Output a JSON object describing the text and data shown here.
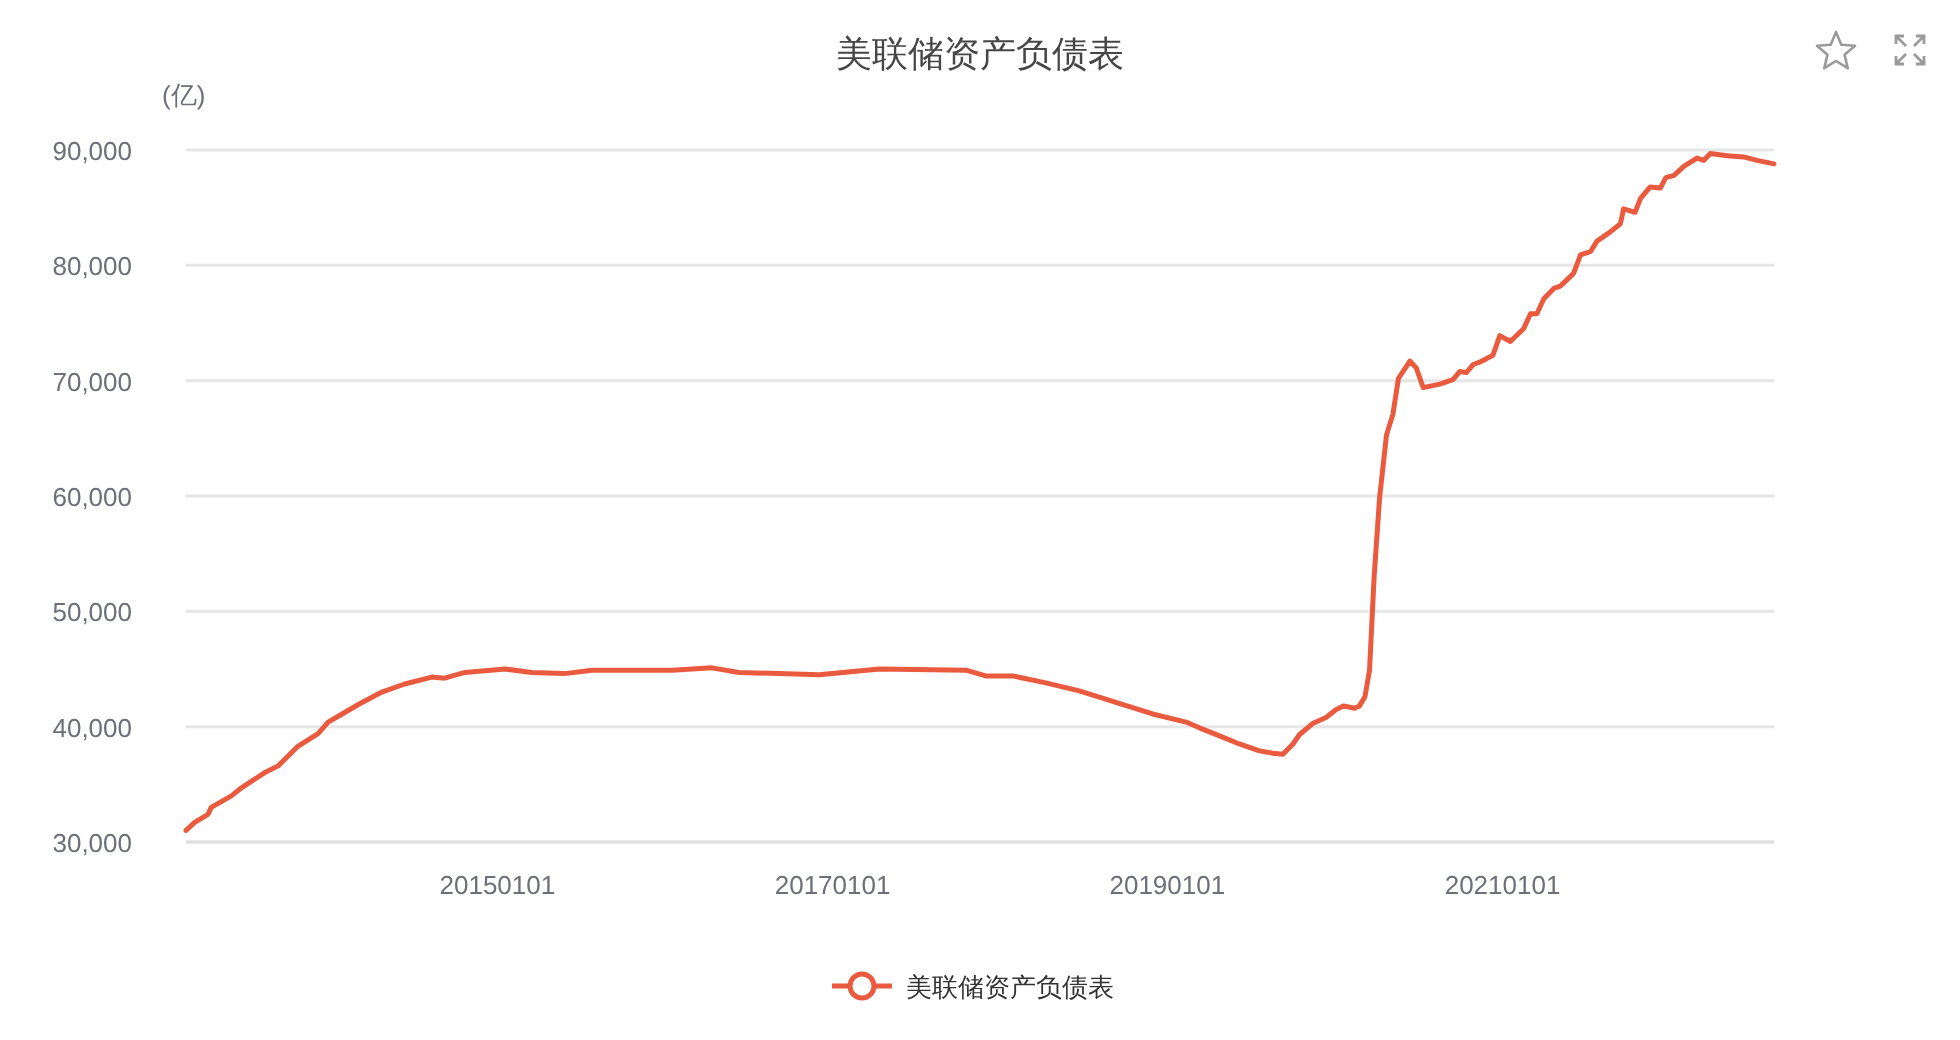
{
  "chart_data": {
    "type": "line",
    "title": "美联储资产负债表",
    "ylabel": "(亿)",
    "x": [
      "2013-02-21",
      "2013-03-12",
      "2013-04-10",
      "2013-04-17",
      "2013-05-31",
      "2013-06-22",
      "2013-08-11",
      "2013-09-10",
      "2013-10-23",
      "2013-12-06",
      "2013-12-28",
      "2014-01-19",
      "2014-03-03",
      "2014-04-24",
      "2014-06-13",
      "2014-08-11",
      "2014-09-08",
      "2014-10-22",
      "2015-01-18",
      "2015-03-17",
      "2015-05-28",
      "2015-07-26",
      "2015-10-06",
      "2016-01-17",
      "2016-04-13",
      "2016-06-11",
      "2016-12-03",
      "2017-04-13",
      "2017-10-19",
      "2017-12-01",
      "2018-01-29",
      "2018-04-11",
      "2018-06-23",
      "2018-09-04",
      "2018-11-30",
      "2019-02-11",
      "2019-03-12",
      "2019-04-25",
      "2019-06-07",
      "2019-07-21",
      "2019-08-19",
      "2019-09-10",
      "2019-10-02",
      "2019-10-16",
      "2019-11-15",
      "2019-12-13",
      "2020-01-05",
      "2020-01-20",
      "2020-02-13",
      "2020-02-24",
      "2020-03-07",
      "2020-03-17",
      "2020-03-27",
      "2020-04-08",
      "2020-04-23",
      "2020-05-07",
      "2020-05-19",
      "2020-06-13",
      "2020-06-27",
      "2020-07-12",
      "2020-08-17",
      "2020-09-15",
      "2020-09-30",
      "2020-10-14",
      "2020-10-29",
      "2020-11-12",
      "2020-12-11",
      "2020-12-26",
      "2021-01-18",
      "2021-02-16",
      "2021-03-03",
      "2021-03-17",
      "2021-04-01",
      "2021-04-23",
      "2021-05-07",
      "2021-06-05",
      "2021-06-20",
      "2021-07-12",
      "2021-07-26",
      "2021-08-24",
      "2021-09-15",
      "2021-09-22",
      "2021-10-17",
      "2021-10-29",
      "2021-11-19",
      "2021-12-11",
      "2021-12-23",
      "2022-01-10",
      "2022-02-01",
      "2022-03-01",
      "2022-03-16",
      "2022-03-30",
      "2022-05-06",
      "2022-06-11",
      "2022-07-10",
      "2022-08-16"
    ],
    "series": [
      {
        "name": "美联储资产负债表",
        "color": "#ea5a3f",
        "values": [
          31000,
          31700,
          32400,
          33000,
          34000,
          34700,
          36000,
          36600,
          38300,
          39400,
          40400,
          40900,
          41900,
          43000,
          43700,
          44300,
          44200,
          44700,
          45000,
          44700,
          44600,
          44900,
          44900,
          44900,
          45100,
          44700,
          44500,
          45000,
          44900,
          44400,
          44400,
          43800,
          43100,
          42200,
          41100,
          40400,
          39900,
          39200,
          38500,
          37900,
          37700,
          37600,
          38500,
          39300,
          40300,
          40800,
          41500,
          41800,
          41600,
          41800,
          42600,
          44900,
          53000,
          59900,
          65300,
          67100,
          70200,
          71700,
          71100,
          69400,
          69700,
          70100,
          70800,
          70700,
          71400,
          71600,
          72200,
          73900,
          73400,
          74500,
          75800,
          75800,
          77100,
          78000,
          78200,
          79300,
          80900,
          81200,
          82100,
          82900,
          83600,
          84900,
          84600,
          85800,
          86800,
          86700,
          87600,
          87800,
          88600,
          89300,
          89100,
          89700,
          89500,
          89400,
          89100,
          88800
        ]
      }
    ],
    "xlim": [
      "2013-02-21",
      "2022-08-16"
    ],
    "xticks": [
      {
        "value": "2015-01-01",
        "label": "20150101"
      },
      {
        "value": "2017-01-01",
        "label": "20170101"
      },
      {
        "value": "2019-01-01",
        "label": "20190101"
      },
      {
        "value": "2021-01-01",
        "label": "20210101"
      }
    ],
    "ylim": [
      30000,
      90000
    ],
    "yticks": [
      {
        "value": 30000,
        "label": "30,000"
      },
      {
        "value": 40000,
        "label": "40,000"
      },
      {
        "value": 50000,
        "label": "50,000"
      },
      {
        "value": 60000,
        "label": "60,000"
      },
      {
        "value": 70000,
        "label": "70,000"
      },
      {
        "value": 80000,
        "label": "80,000"
      },
      {
        "value": 90000,
        "label": "90,000"
      }
    ],
    "grid": "y",
    "legend": "bottom"
  }
}
